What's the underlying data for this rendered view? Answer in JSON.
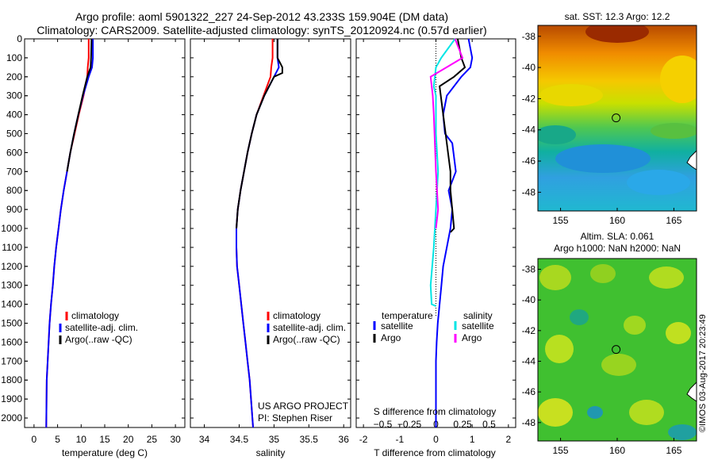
{
  "header": {
    "line1": "Argo profile: aoml 5901322_227 24-Sep-2012 43.233S 159.904E (DM data)",
    "line2": "Climatology: CARS2009. Satellite-adjusted climatology: synTS_20120924.nc (0.57d earlier)"
  },
  "colors": {
    "climatology": "#ff0000",
    "satellite": "#0000ff",
    "argo": "#000000",
    "salinity_satellite": "#00e5e5",
    "salinity_argo": "#ff00ff"
  },
  "chart_data": [
    {
      "id": "temperature",
      "type": "line",
      "xlabel": "temperature (deg C)",
      "xlim": [
        -2,
        32
      ],
      "ylim": [
        2050,
        0
      ],
      "y_reversed": true,
      "xticks": [
        0,
        5,
        10,
        15,
        20,
        25,
        30
      ],
      "yticks": [
        0,
        100,
        200,
        300,
        400,
        500,
        600,
        700,
        800,
        900,
        1000,
        1100,
        1200,
        1300,
        1400,
        1500,
        1600,
        1700,
        1800,
        1900,
        2000
      ],
      "legend": {
        "placement": "middle-center",
        "entries": [
          "climatology",
          "satellite-adj. clim.",
          "Argo(..raw -QC)"
        ]
      },
      "series": [
        {
          "name": "climatology",
          "color": "#ff0000",
          "x": [
            11.6,
            11.6,
            11.4,
            11.3,
            10.5,
            9.5,
            8.6,
            7.7,
            7.0,
            6.3,
            5.7,
            5.2,
            4.7,
            4.3,
            4.0,
            3.6,
            3.3,
            3.1,
            2.9,
            2.7,
            2.6
          ],
          "y": [
            0,
            100,
            150,
            200,
            300,
            400,
            500,
            600,
            700,
            800,
            900,
            1000,
            1100,
            1200,
            1300,
            1400,
            1500,
            1600,
            1700,
            1800,
            2050
          ]
        },
        {
          "name": "satellite-adj. clim.",
          "color": "#0000ff",
          "x": [
            12.5,
            12.5,
            12.3,
            11.6,
            10.4,
            9.4,
            8.5,
            7.7,
            7.0,
            6.3,
            5.7,
            5.2,
            4.7,
            4.3,
            4.0,
            3.6,
            3.3,
            3.1,
            2.9,
            2.7,
            2.6
          ],
          "y": [
            0,
            100,
            150,
            200,
            300,
            400,
            500,
            600,
            700,
            800,
            900,
            1000,
            1100,
            1200,
            1300,
            1400,
            1500,
            1600,
            1700,
            1800,
            2050
          ]
        },
        {
          "name": "Argo(..raw -QC)",
          "color": "#000000",
          "x": [
            12.2,
            12.1,
            12.0,
            11.3,
            10.3,
            9.4,
            8.5,
            7.7,
            7.0
          ],
          "y": [
            0,
            100,
            150,
            200,
            300,
            400,
            500,
            600,
            700
          ]
        }
      ]
    },
    {
      "id": "salinity",
      "type": "line",
      "xlabel": "salinity",
      "xlim": [
        33.8,
        36.1
      ],
      "ylim": [
        2050,
        0
      ],
      "y_reversed": true,
      "xticks": [
        34,
        34.5,
        35,
        35.5,
        36
      ],
      "legend": {
        "placement": "middle-center",
        "entries": [
          "climatology",
          "satellite-adj. clim.",
          "Argo(..raw -QC)"
        ]
      },
      "annotation": [
        "US ARGO PROJECT",
        "PI: Stephen Riser"
      ],
      "series": [
        {
          "name": "climatology",
          "color": "#ff0000",
          "x": [
            34.98,
            34.98,
            34.96,
            34.95,
            34.85,
            34.75,
            34.68,
            34.62,
            34.57,
            34.52,
            34.48,
            34.46,
            34.46,
            34.47,
            34.5,
            34.53,
            34.56,
            34.59,
            34.62,
            34.65,
            34.7
          ],
          "y": [
            0,
            100,
            150,
            200,
            300,
            400,
            500,
            600,
            700,
            800,
            900,
            1000,
            1100,
            1200,
            1300,
            1400,
            1500,
            1600,
            1700,
            1800,
            2050
          ]
        },
        {
          "name": "satellite-adj. clim.",
          "color": "#0000ff",
          "x": [
            35.05,
            35.05,
            35.07,
            35.0,
            34.86,
            34.75,
            34.68,
            34.62,
            34.57,
            34.52,
            34.48,
            34.46,
            34.46,
            34.47,
            34.5,
            34.53,
            34.56,
            34.59,
            34.62,
            34.65,
            34.7
          ],
          "y": [
            0,
            100,
            150,
            200,
            300,
            400,
            500,
            600,
            700,
            800,
            900,
            1000,
            1100,
            1200,
            1300,
            1400,
            1500,
            1600,
            1700,
            1800,
            2050
          ]
        },
        {
          "name": "Argo(..raw -QC)",
          "color": "#000000",
          "x": [
            35.05,
            35.05,
            35.12,
            35.12,
            35.0,
            34.86,
            34.75,
            34.68,
            34.62,
            34.57,
            34.52,
            34.48,
            34.46
          ],
          "y": [
            0,
            100,
            150,
            180,
            200,
            300,
            400,
            500,
            600,
            700,
            800,
            900,
            1000
          ]
        }
      ]
    },
    {
      "id": "differences",
      "type": "line",
      "xlabel": "T difference from climatology",
      "xlabel2": "S difference from climatology",
      "xlim": [
        -2.2,
        2.2
      ],
      "ylim": [
        2050,
        0
      ],
      "y_reversed": true,
      "xticks": [
        -2,
        -1,
        0,
        1,
        2
      ],
      "x2ticks": [
        -0.5,
        -0.25,
        0,
        0.25,
        0.5
      ],
      "x2tick_labels": [
        "−0.5",
        "−0.25",
        "0",
        "0.25",
        "0.5"
      ],
      "legend": {
        "placement": "middle-center",
        "groups": [
          {
            "title": "temperature",
            "entries": [
              "satellite",
              "Argo"
            ]
          },
          {
            "title": "salinity",
            "entries": [
              "satellite",
              "Argo"
            ]
          }
        ]
      },
      "series": [
        {
          "name": "temperature satellite",
          "color": "#0000ff",
          "x": [
            0.9,
            1.0,
            0.95,
            0.7,
            0.3,
            0.2,
            0.25,
            0.45,
            0.55,
            0.35,
            0.45,
            0.4,
            0.3,
            0.2,
            0.15,
            0.1,
            0.05,
            0.02,
            0.0,
            0.0,
            0.0,
            0.0
          ],
          "y": [
            0,
            100,
            150,
            200,
            300,
            400,
            500,
            550,
            700,
            800,
            900,
            1000,
            1100,
            1200,
            1300,
            1400,
            1500,
            1600,
            1700,
            1800,
            1900,
            2050
          ]
        },
        {
          "name": "temperature Argo",
          "color": "#000000",
          "x": [
            0.6,
            0.7,
            0.8,
            0.5,
            0.1,
            0.3,
            0.4,
            0.4,
            0.45,
            0.5,
            0.4
          ],
          "y": [
            0,
            100,
            150,
            200,
            250,
            550,
            700,
            800,
            900,
            1000,
            1020
          ]
        },
        {
          "name": "salinity satellite",
          "color": "#00e5e5",
          "x": [
            0.18,
            0.05,
            0.0,
            -0.02,
            0.0,
            0.0,
            0.02,
            0.0,
            -0.02,
            -0.05,
            -0.04,
            0.0
          ],
          "y": [
            0,
            100,
            150,
            250,
            300,
            500,
            700,
            900,
            1100,
            1300,
            1400,
            1410
          ]
        },
        {
          "name": "salinity Argo",
          "color": "#ff00ff",
          "x": [
            0.18,
            0.25,
            0.1,
            -0.05,
            -0.03,
            -0.02,
            0.0,
            0.02,
            0.0
          ],
          "y": [
            0,
            100,
            150,
            200,
            300,
            400,
            700,
            900,
            1000
          ]
        }
      ]
    },
    {
      "id": "sst-map",
      "type": "heatmap",
      "title": "sat. SST: 12.3 Argo: 12.2",
      "xlim": [
        153,
        167
      ],
      "ylim": [
        -49.2,
        -37.3
      ],
      "xticks": [
        155,
        160,
        165
      ],
      "yticks": [
        -38,
        -40,
        -42,
        -44,
        -46,
        -48
      ],
      "marker": {
        "lon": 159.904,
        "lat": -43.233
      }
    },
    {
      "id": "sla-map",
      "type": "heatmap",
      "title": "Altim. SLA: 0.061",
      "subtitle": "Argo h1000: NaN h2000: NaN",
      "xlim": [
        153,
        167
      ],
      "ylim": [
        -49.2,
        -37.3
      ],
      "xticks": [
        155,
        160,
        165
      ],
      "yticks": [
        -38,
        -40,
        -42,
        -44,
        -46,
        -48
      ],
      "marker": {
        "lon": 159.904,
        "lat": -43.233
      }
    }
  ],
  "credit": "©IMOS 03-Aug-2017 20:23:49"
}
